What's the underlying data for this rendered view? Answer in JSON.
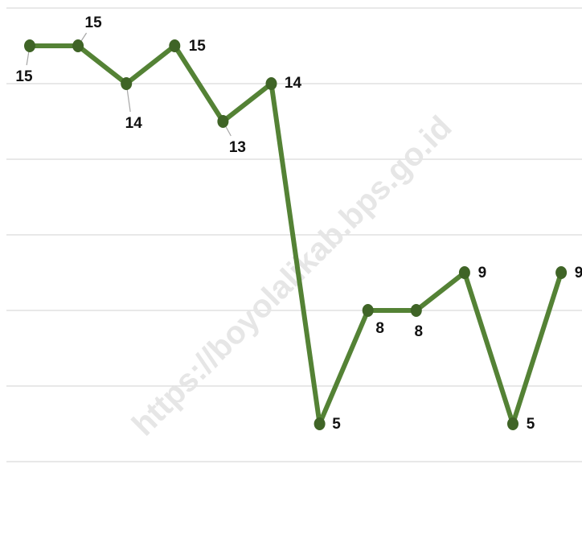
{
  "chart_data": {
    "type": "line",
    "values": [
      15,
      15,
      14,
      15,
      13,
      14,
      5,
      8,
      8,
      9,
      5,
      9
    ],
    "color": "#548235",
    "marker_color": "#3f6426",
    "ylim": [
      4,
      16
    ],
    "yticks": [
      4,
      6,
      8,
      10,
      12,
      14,
      16
    ],
    "grid": true,
    "annotation": "https://boyolalikab.bps.go.id"
  }
}
